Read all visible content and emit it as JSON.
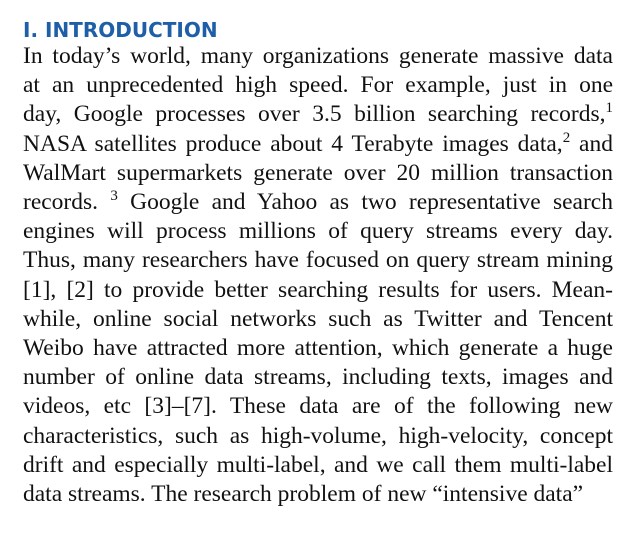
{
  "section": {
    "heading": "I. INTRODUCTION"
  },
  "paragraph": {
    "lines": [
      {
        "segments": [
          {
            "text": "In today’s world, many organizations generate massive data"
          }
        ]
      },
      {
        "segments": [
          {
            "text": "at an unprecedented high speed. For example, just in one"
          }
        ]
      },
      {
        "segments": [
          {
            "text": "day, Google processes over 3.5 billion searching records,"
          },
          {
            "sup": "1"
          }
        ]
      },
      {
        "segments": [
          {
            "text": "NASA satellites produce about 4 Terabyte images data,"
          },
          {
            "sup": "2"
          },
          {
            "text": " and"
          }
        ]
      },
      {
        "segments": [
          {
            "text": "WalMart supermarkets generate over 20 million transaction"
          }
        ]
      },
      {
        "segments": [
          {
            "text": "records. "
          },
          {
            "sup": "3"
          },
          {
            "text": " Google and Yahoo as two representative search"
          }
        ]
      },
      {
        "segments": [
          {
            "text": "engines will process millions of query streams every day."
          }
        ]
      },
      {
        "segments": [
          {
            "text": "Thus, many researchers have focused on query stream mining"
          }
        ]
      },
      {
        "segments": [
          {
            "text": "[1], [2] to provide better searching results for users. Mean-"
          }
        ]
      },
      {
        "segments": [
          {
            "text": "while, online social networks such as Twitter and Tencent"
          }
        ]
      },
      {
        "segments": [
          {
            "text": "Weibo have attracted more attention, which generate a huge"
          }
        ]
      },
      {
        "segments": [
          {
            "text": "number of online data streams, including texts, images and"
          }
        ]
      },
      {
        "segments": [
          {
            "text": "videos, etc [3]–[7]. These data are of the following new"
          }
        ]
      },
      {
        "segments": [
          {
            "text": "characteristics, such as high-volume, high-velocity, concept"
          }
        ]
      },
      {
        "segments": [
          {
            "text": "drift and especially multi-label, and we call them multi-label"
          }
        ]
      },
      {
        "segments": [
          {
            "text": "data streams. The research problem of new “intensive data”"
          }
        ]
      }
    ]
  }
}
